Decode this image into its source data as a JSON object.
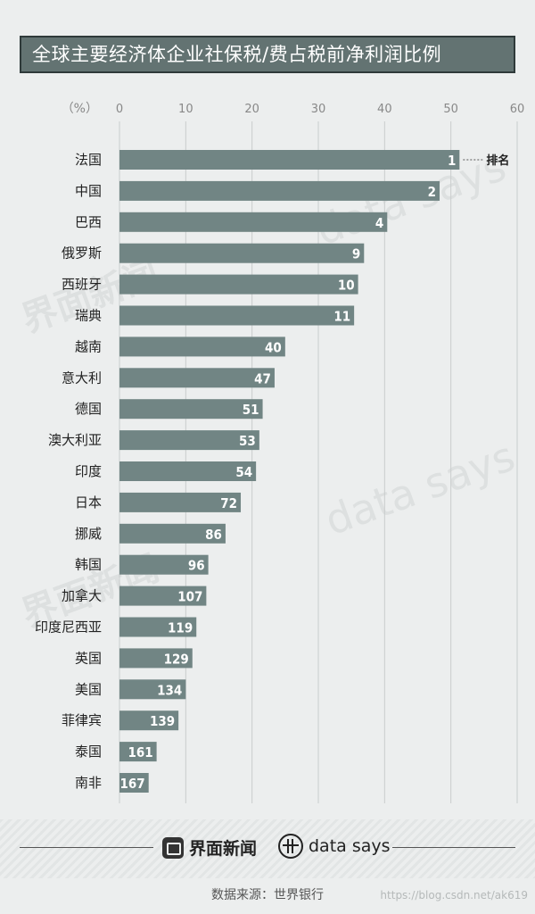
{
  "title": "全球主要经济体企业社保税/费占税前净利润比例",
  "chart_data": {
    "type": "bar",
    "orientation": "horizontal",
    "unit": "（%）",
    "xlim": [
      0,
      60
    ],
    "ticks": [
      0,
      10,
      20,
      30,
      40,
      50,
      60
    ],
    "grid": true,
    "rank_header": "排名",
    "categories": [
      "法国",
      "中国",
      "巴西",
      "俄罗斯",
      "西班牙",
      "瑞典",
      "越南",
      "意大利",
      "德国",
      "澳大利亚",
      "印度",
      "日本",
      "挪威",
      "韩国",
      "加拿大",
      "印度尼西亚",
      "英国",
      "美国",
      "菲律宾",
      "泰国",
      "南非"
    ],
    "values": [
      51.3,
      48.3,
      40.4,
      36.9,
      36.0,
      35.4,
      25.0,
      23.4,
      21.6,
      21.1,
      20.6,
      18.3,
      16.0,
      13.4,
      13.1,
      11.6,
      11.0,
      10.0,
      8.9,
      5.6,
      4.4
    ],
    "ranks": [
      "1",
      "2",
      "4",
      "9",
      "10",
      "11",
      "40",
      "47",
      "51",
      "53",
      "54",
      "72",
      "86",
      "96",
      "107",
      "119",
      "129",
      "134",
      "139",
      "161",
      "167"
    ]
  },
  "footer": {
    "brand_left": "界面新闻",
    "brand_right": "data says",
    "source": "数据来源：世界银行",
    "credit": "https://blog.csdn.net/ak619"
  },
  "watermarks": {
    "data_says": "data says",
    "jiemian": "界面新闻"
  }
}
